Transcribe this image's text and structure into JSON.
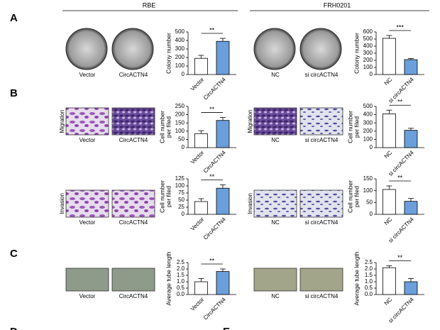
{
  "figure": {
    "panels": [
      "A",
      "B",
      "C",
      "D",
      "E"
    ],
    "cell_lines": [
      "RBE",
      "FRH0201"
    ],
    "image_groups": [
      {
        "captions": [
          "Vector",
          "CircACTN4"
        ]
      },
      {
        "captions": [
          "NC",
          "si circACTN4"
        ]
      },
      {
        "label": "Migration",
        "captions": [
          "Vector",
          "CircACTN4"
        ]
      },
      {
        "label": "Migration",
        "captions": [
          "NC",
          "si circACTN4"
        ]
      },
      {
        "label": "Invasion",
        "captions": [
          "Vector",
          "CircACTN4"
        ]
      },
      {
        "label": "Invasion",
        "captions": [
          "NC",
          "si circACTN4"
        ]
      },
      {
        "captions": [
          "Vector",
          "CircACTN4"
        ]
      },
      {
        "captions": [
          "NC",
          "si circACTN4"
        ]
      }
    ]
  },
  "chart_data": [
    {
      "type": "bar",
      "ylabel": [
        "Colony number"
      ],
      "categories": [
        "Vector",
        "CircACTN4"
      ],
      "values": [
        190,
        390
      ],
      "errors": [
        35,
        35
      ],
      "colors": [
        "#ffffff",
        "#6a9fdc"
      ],
      "ylim": [
        0,
        500
      ],
      "yticks": [
        0,
        100,
        200,
        300,
        400,
        500
      ],
      "annotation": "**"
    },
    {
      "type": "bar",
      "ylabel": [
        "Colony number"
      ],
      "categories": [
        "NC",
        "si circACTN4"
      ],
      "values": [
        510,
        210
      ],
      "errors": [
        40,
        15
      ],
      "colors": [
        "#ffffff",
        "#6a9fdc"
      ],
      "ylim": [
        0,
        600
      ],
      "yticks": [
        0,
        100,
        200,
        300,
        400,
        500,
        600
      ],
      "annotation": "***"
    },
    {
      "type": "bar",
      "ylabel": [
        "Cell number",
        "per filed"
      ],
      "categories": [
        "Vector",
        "CircACTN4"
      ],
      "values": [
        85,
        165
      ],
      "errors": [
        18,
        18
      ],
      "colors": [
        "#ffffff",
        "#6a9fdc"
      ],
      "ylim": [
        0,
        250
      ],
      "yticks": [
        0,
        50,
        100,
        150,
        200,
        250
      ],
      "annotation": "**"
    },
    {
      "type": "bar",
      "ylabel": [
        "Cell number",
        "per filed"
      ],
      "categories": [
        "NC",
        "si circACTN4"
      ],
      "values": [
        410,
        210
      ],
      "errors": [
        45,
        25
      ],
      "colors": [
        "#ffffff",
        "#6a9fdc"
      ],
      "ylim": [
        0,
        500
      ],
      "yticks": [
        0,
        100,
        200,
        300,
        400,
        500
      ],
      "annotation": "**"
    },
    {
      "type": "bar",
      "ylabel": [
        "Cell number",
        "per filed"
      ],
      "categories": [
        "Vector",
        "CircACTN4"
      ],
      "values": [
        45,
        92
      ],
      "errors": [
        10,
        12
      ],
      "colors": [
        "#ffffff",
        "#6a9fdc"
      ],
      "ylim": [
        0,
        125
      ],
      "yticks": [
        0,
        25,
        50,
        75,
        100,
        125
      ],
      "annotation": "**"
    },
    {
      "type": "bar",
      "ylabel": [
        "Cell number",
        "per filed"
      ],
      "categories": [
        "NC",
        "si circACTN4"
      ],
      "values": [
        105,
        55
      ],
      "errors": [
        15,
        12
      ],
      "colors": [
        "#ffffff",
        "#6a9fdc"
      ],
      "ylim": [
        0,
        150
      ],
      "yticks": [
        0,
        50,
        100,
        150
      ],
      "annotation": "**"
    },
    {
      "type": "bar",
      "ylabel": [
        "Average tube length"
      ],
      "categories": [
        "Vector",
        "CircACTN4"
      ],
      "values": [
        1.0,
        1.8
      ],
      "errors": [
        0.25,
        0.2
      ],
      "colors": [
        "#ffffff",
        "#6a9fdc"
      ],
      "ylim": [
        0,
        2.5
      ],
      "yticks": [
        {
          "value": 0,
          "label": "0.0"
        },
        0.5,
        {
          "value": 1,
          "label": "1.0"
        },
        1.5,
        {
          "value": 2,
          "label": "2.0"
        },
        2.5
      ],
      "annotation": "**"
    },
    {
      "type": "bar",
      "ylabel": [
        "Average tube length"
      ],
      "categories": [
        "NC",
        "si circACTN4"
      ],
      "values": [
        2.1,
        1.0
      ],
      "errors": [
        0.15,
        0.25
      ],
      "colors": [
        "#ffffff",
        "#6a9fdc"
      ],
      "ylim": [
        0,
        2.5
      ],
      "yticks": [
        {
          "value": 0,
          "label": "0.0"
        },
        0.5,
        {
          "value": 1,
          "label": "1.0"
        },
        1.5,
        {
          "value": 2,
          "label": "2.0"
        },
        2.5
      ],
      "annotation": "**"
    }
  ]
}
